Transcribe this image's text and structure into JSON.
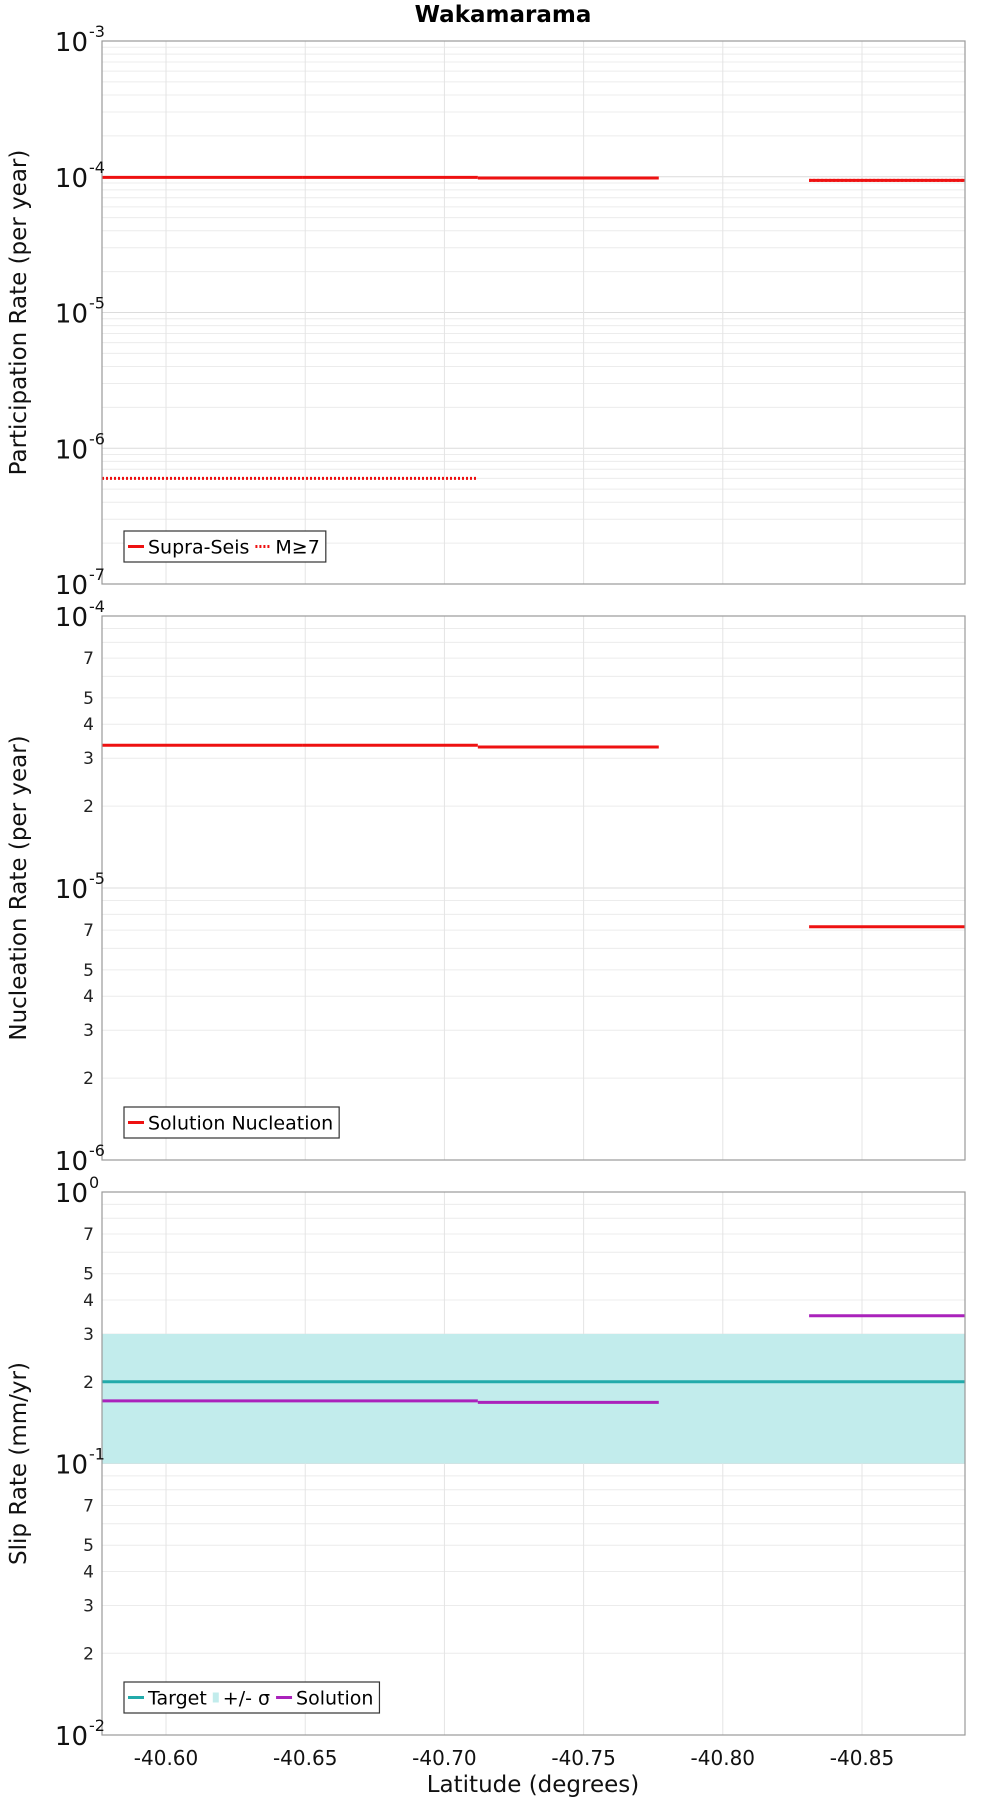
{
  "chart_data": {
    "type": "line",
    "title": "Wakamarama",
    "xlabel": "Latitude (degrees)",
    "xlim": [
      -40.577,
      -40.887
    ],
    "x_ticks": [
      "-40.60",
      "-40.65",
      "-40.70",
      "-40.75",
      "-40.80",
      "-40.85"
    ],
    "x_tick_values": [
      -40.6,
      -40.65,
      -40.7,
      -40.75,
      -40.8,
      -40.85
    ],
    "grid": true,
    "panels": [
      {
        "ylabel": "Participation Rate (per year)",
        "yscale": "log",
        "ylim": [
          1e-07,
          0.001
        ],
        "major_ticks": [
          {
            "base": "10",
            "exp": "-7",
            "value": 1e-07
          },
          {
            "base": "10",
            "exp": "-6",
            "value": 1e-06
          },
          {
            "base": "10",
            "exp": "-5",
            "value": 1e-05
          },
          {
            "base": "10",
            "exp": "-4",
            "value": 0.0001
          },
          {
            "base": "10",
            "exp": "-3",
            "value": 0.001
          }
        ],
        "minor_labels": [],
        "legend_position": "bottom-left",
        "legend": [
          {
            "label": "Supra-Seis",
            "color": "#ee1111",
            "style": "solid"
          },
          {
            "label": "M≥7",
            "color": "#ee1111",
            "style": "dotted"
          }
        ],
        "series": [
          {
            "name": "Supra-Seis",
            "style": "solid",
            "color": "#ee1111",
            "segments": [
              {
                "x": [
                  -40.577,
                  -40.649
                ],
                "y": 9.9e-05
              },
              {
                "x": [
                  -40.649,
                  -40.712
                ],
                "y": 9.9e-05
              },
              {
                "x": [
                  -40.712,
                  -40.777
                ],
                "y": 9.8e-05
              },
              {
                "x": [
                  -40.831,
                  -40.887
                ],
                "y": 9.4e-05
              }
            ]
          },
          {
            "name": "M≥7",
            "style": "dotted",
            "color": "#ee1111",
            "segments": [
              {
                "x": [
                  -40.577,
                  -40.712
                ],
                "y": 6e-07
              },
              {
                "x": [
                  -40.831,
                  -40.887
                ],
                "y": 9.4e-05
              }
            ]
          }
        ]
      },
      {
        "ylabel": "Nucleation Rate (per year)",
        "yscale": "log",
        "ylim": [
          1e-06,
          0.0001
        ],
        "major_ticks": [
          {
            "base": "10",
            "exp": "-6",
            "value": 1e-06
          },
          {
            "base": "10",
            "exp": "-5",
            "value": 1e-05
          },
          {
            "base": "10",
            "exp": "-4",
            "value": 0.0001
          }
        ],
        "minor_labels": [
          "2",
          "3",
          "4",
          "5",
          "7"
        ],
        "legend_position": "bottom-left",
        "legend": [
          {
            "label": "Solution Nucleation",
            "color": "#ee1111",
            "style": "solid"
          }
        ],
        "series": [
          {
            "name": "Solution Nucleation",
            "style": "solid",
            "color": "#ee1111",
            "segments": [
              {
                "x": [
                  -40.577,
                  -40.649
                ],
                "y": 3.35e-05
              },
              {
                "x": [
                  -40.649,
                  -40.712
                ],
                "y": 3.35e-05
              },
              {
                "x": [
                  -40.712,
                  -40.777
                ],
                "y": 3.3e-05
              },
              {
                "x": [
                  -40.831,
                  -40.887
                ],
                "y": 7.2e-06
              }
            ]
          }
        ]
      },
      {
        "ylabel": "Slip Rate (mm/yr)",
        "yscale": "log",
        "ylim": [
          0.01,
          1
        ],
        "major_ticks": [
          {
            "base": "10",
            "exp": "-2",
            "value": 0.01
          },
          {
            "base": "10",
            "exp": "-1",
            "value": 0.1
          },
          {
            "base": "10",
            "exp": "0",
            "value": 1
          }
        ],
        "minor_labels": [
          "2",
          "3",
          "4",
          "5",
          "7"
        ],
        "legend_position": "bottom-left",
        "legend": [
          {
            "label": "Target",
            "color": "#22aaaa",
            "style": "solid"
          },
          {
            "label": "+/- σ",
            "color": "#c2ecec",
            "style": "band"
          },
          {
            "label": "Solution",
            "color": "#aa22bb",
            "style": "solid"
          }
        ],
        "band": {
          "name": "+/- σ",
          "color": "#c2ecec",
          "x": [
            -40.577,
            -40.887
          ],
          "y": [
            0.1,
            0.3
          ]
        },
        "series": [
          {
            "name": "Target",
            "style": "solid",
            "color": "#22aaaa",
            "segments": [
              {
                "x": [
                  -40.577,
                  -40.887
                ],
                "y": 0.2
              }
            ]
          },
          {
            "name": "Solution",
            "style": "solid",
            "color": "#aa22bb",
            "segments": [
              {
                "x": [
                  -40.577,
                  -40.712
                ],
                "y": 0.17
              },
              {
                "x": [
                  -40.712,
                  -40.777
                ],
                "y": 0.168
              },
              {
                "x": [
                  -40.831,
                  -40.887
                ],
                "y": 0.35
              }
            ]
          }
        ]
      }
    ]
  }
}
